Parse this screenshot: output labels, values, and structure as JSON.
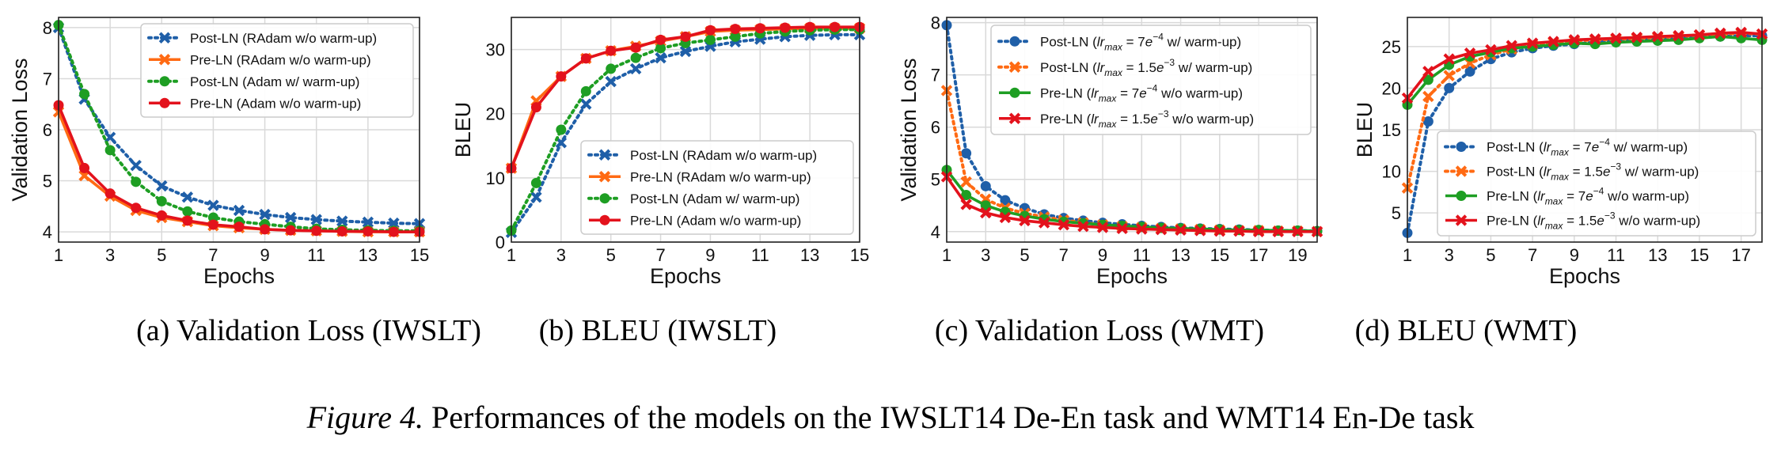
{
  "figure": {
    "label": "Figure 4.",
    "caption": "Performances of the models on the IWSLT14 De-En task and WMT14 En-De task",
    "subcaptions": [
      "(a)  Validation Loss (IWSLT)",
      "(b)  BLEU (IWSLT)",
      "(c)  Validation Loss (WMT)",
      "(d)  BLEU (WMT)"
    ]
  },
  "colors": {
    "blue": "#1f5fa8",
    "orange": "#ff6a13",
    "green": "#1e9e23",
    "red": "#e3121c",
    "grid": "#d9d9d9"
  },
  "chart_data": [
    {
      "type": "line",
      "xlabel": "Epochs",
      "ylabel": "Validation Loss",
      "xlim": [
        1,
        15
      ],
      "ylim": [
        3.8,
        8.2
      ],
      "xticks": [
        1,
        3,
        5,
        7,
        9,
        11,
        13,
        15
      ],
      "yticks": [
        4,
        5,
        6,
        7,
        8
      ],
      "grid": true,
      "legend": "top-right",
      "x": [
        1,
        2,
        3,
        4,
        5,
        6,
        7,
        8,
        9,
        10,
        11,
        12,
        13,
        14,
        15
      ],
      "series": [
        {
          "name": "Post-LN (RAdam w/o warm-up)",
          "color": "blue",
          "style": "dotted",
          "marker": "x",
          "values": [
            8.0,
            6.6,
            5.85,
            5.3,
            4.9,
            4.68,
            4.52,
            4.42,
            4.34,
            4.28,
            4.24,
            4.21,
            4.19,
            4.17,
            4.16
          ]
        },
        {
          "name": "Pre-LN (RAdam w/o warm-up)",
          "color": "orange",
          "style": "solid",
          "marker": "x",
          "values": [
            6.35,
            5.1,
            4.7,
            4.42,
            4.28,
            4.2,
            4.12,
            4.08,
            4.05,
            4.03,
            4.02,
            4.01,
            4.0,
            4.0,
            4.0
          ]
        },
        {
          "name": "Post-LN (Adam w/ warm-up)",
          "color": "green",
          "style": "dotted",
          "marker": "o",
          "values": [
            8.05,
            6.7,
            5.6,
            4.98,
            4.6,
            4.4,
            4.28,
            4.2,
            4.15,
            4.1,
            4.06,
            4.04,
            4.03,
            4.02,
            4.02
          ]
        },
        {
          "name": "Pre-LN (Adam w/o warm-up)",
          "color": "red",
          "style": "solid",
          "marker": "o",
          "values": [
            6.48,
            5.25,
            4.75,
            4.47,
            4.32,
            4.22,
            4.14,
            4.1,
            4.05,
            4.03,
            4.02,
            4.01,
            4.01,
            4.0,
            4.0
          ]
        }
      ]
    },
    {
      "type": "line",
      "xlabel": "Epochs",
      "ylabel": "BLEU",
      "xlim": [
        1,
        15
      ],
      "ylim": [
        0,
        35
      ],
      "xticks": [
        1,
        3,
        5,
        7,
        9,
        11,
        13,
        15
      ],
      "yticks": [
        0,
        10,
        20,
        30
      ],
      "grid": true,
      "legend": "bottom-right",
      "x": [
        1,
        2,
        3,
        4,
        5,
        6,
        7,
        8,
        9,
        10,
        11,
        12,
        13,
        14,
        15
      ],
      "series": [
        {
          "name": "Post-LN (RAdam w/o warm-up)",
          "color": "blue",
          "style": "dotted",
          "marker": "x",
          "values": [
            1.5,
            7.0,
            15.5,
            21.5,
            25.0,
            27.0,
            28.7,
            29.7,
            30.5,
            31.2,
            31.6,
            32.0,
            32.2,
            32.3,
            32.3
          ]
        },
        {
          "name": "Pre-LN (RAdam w/o warm-up)",
          "color": "orange",
          "style": "solid",
          "marker": "x",
          "values": [
            11.5,
            22.0,
            25.8,
            28.6,
            29.8,
            30.5,
            31.3,
            32.0,
            32.8,
            33.0,
            33.1,
            33.2,
            33.3,
            33.3,
            33.3
          ]
        },
        {
          "name": "Post-LN (Adam w/ warm-up)",
          "color": "green",
          "style": "dotted",
          "marker": "o",
          "values": [
            1.8,
            9.2,
            17.5,
            23.5,
            27.0,
            28.7,
            30.2,
            31.0,
            31.5,
            32.0,
            32.5,
            32.8,
            33.0,
            33.1,
            33.1
          ]
        },
        {
          "name": "Pre-LN (Adam w/o warm-up)",
          "color": "red",
          "style": "solid",
          "marker": "o",
          "values": [
            11.5,
            21.0,
            25.8,
            28.6,
            29.8,
            30.3,
            31.5,
            32.0,
            33.0,
            33.2,
            33.3,
            33.4,
            33.5,
            33.5,
            33.5
          ]
        }
      ]
    },
    {
      "type": "line",
      "xlabel": "Epochs",
      "ylabel": "Validation Loss",
      "xlim": [
        1,
        20
      ],
      "ylim": [
        3.8,
        8.1
      ],
      "xticks": [
        1,
        3,
        5,
        7,
        9,
        11,
        13,
        15,
        17,
        19
      ],
      "yticks": [
        4,
        5,
        6,
        7,
        8
      ],
      "grid": true,
      "legend": "top-right",
      "x": [
        1,
        2,
        3,
        4,
        5,
        6,
        7,
        8,
        9,
        10,
        11,
        12,
        13,
        14,
        15,
        16,
        17,
        18,
        19,
        20
      ],
      "series": [
        {
          "name": "Post-LN (lr_max = 7e−4 w/ warm-up)",
          "legend_parts": [
            "Post-LN (",
            "lr",
            "max",
            " = 7",
            "e",
            "−4",
            " w/ warm-up)"
          ],
          "color": "blue",
          "style": "dotted",
          "marker": "o",
          "values": [
            7.95,
            5.5,
            4.87,
            4.6,
            4.45,
            4.33,
            4.26,
            4.21,
            4.17,
            4.14,
            4.11,
            4.09,
            4.07,
            4.06,
            4.05,
            4.04,
            4.03,
            4.02,
            4.02,
            4.01
          ]
        },
        {
          "name": "Post-LN (lr_max = 1.5e−3 w/ warm-up)",
          "legend_parts": [
            "Post-LN (",
            "lr",
            "max",
            " = 1.5",
            "e",
            "−3",
            " w/ warm-up)"
          ],
          "color": "orange",
          "style": "dotted",
          "marker": "x",
          "values": [
            6.7,
            4.95,
            4.62,
            4.45,
            4.35,
            4.28,
            4.22,
            4.17,
            4.13,
            4.1,
            4.08,
            4.06,
            4.05,
            4.04,
            4.03,
            4.02,
            4.02,
            4.01,
            4.01,
            4.0
          ]
        },
        {
          "name": "Pre-LN (lr_max = 7e−4 w/o warm-up)",
          "legend_parts": [
            "Pre-LN (",
            "lr",
            "max",
            " = 7",
            "e",
            "−4",
            " w/o warm-up)"
          ],
          "color": "green",
          "style": "solid",
          "marker": "o",
          "values": [
            5.18,
            4.7,
            4.5,
            4.38,
            4.3,
            4.24,
            4.19,
            4.16,
            4.13,
            4.11,
            4.09,
            4.07,
            4.06,
            4.05,
            4.04,
            4.03,
            4.03,
            4.02,
            4.02,
            4.01
          ]
        },
        {
          "name": "Pre-LN (lr_max = 1.5e−3 w/o warm-up)",
          "legend_parts": [
            "Pre-LN (",
            "lr",
            "max",
            " = 1.5",
            "e",
            "−3",
            " w/o warm-up)"
          ],
          "color": "red",
          "style": "solid",
          "marker": "x",
          "values": [
            5.05,
            4.52,
            4.36,
            4.27,
            4.21,
            4.17,
            4.13,
            4.1,
            4.08,
            4.06,
            4.05,
            4.04,
            4.03,
            4.02,
            4.01,
            4.01,
            4.0,
            4.0,
            4.0,
            4.0
          ]
        }
      ]
    },
    {
      "type": "line",
      "xlabel": "Epochs",
      "ylabel": "BLEU",
      "xlim": [
        1,
        18
      ],
      "ylim": [
        1.5,
        28.5
      ],
      "xticks": [
        1,
        3,
        5,
        7,
        9,
        11,
        13,
        15,
        17
      ],
      "yticks": [
        5,
        10,
        15,
        20,
        25
      ],
      "grid": true,
      "legend": "bottom-right",
      "x": [
        1,
        2,
        3,
        4,
        5,
        6,
        7,
        8,
        9,
        10,
        11,
        12,
        13,
        14,
        15,
        16,
        17,
        18
      ],
      "series": [
        {
          "name": "Post-LN (lr_max = 7e−4 w/ warm-up)",
          "legend_parts": [
            "Post-LN (",
            "lr",
            "max",
            " = 7",
            "e",
            "−4",
            " w/ warm-up)"
          ],
          "color": "blue",
          "style": "dotted",
          "marker": "o",
          "values": [
            2.6,
            16.0,
            20.0,
            22.0,
            23.5,
            24.3,
            24.8,
            25.1,
            25.3,
            25.5,
            25.7,
            25.8,
            25.9,
            26.0,
            26.1,
            26.2,
            26.3,
            26.3
          ]
        },
        {
          "name": "Post-LN (lr_max = 1.5e−3 w/ warm-up)",
          "legend_parts": [
            "Post-LN (",
            "lr",
            "max",
            " = 1.5",
            "e",
            "−3",
            " w/ warm-up)"
          ],
          "color": "orange",
          "style": "dotted",
          "marker": "x",
          "values": [
            8.0,
            19.0,
            21.5,
            23.0,
            24.0,
            24.7,
            25.2,
            25.5,
            25.7,
            25.8,
            25.9,
            26.0,
            26.1,
            26.2,
            26.4,
            26.5,
            26.6,
            26.5
          ]
        },
        {
          "name": "Pre-LN (lr_max = 7e−4 w/o warm-up)",
          "legend_parts": [
            "Pre-LN (",
            "lr",
            "max",
            " = 7",
            "e",
            "−4",
            " w/o warm-up)"
          ],
          "color": "green",
          "style": "solid",
          "marker": "o",
          "values": [
            18.0,
            21.0,
            22.8,
            23.8,
            24.3,
            24.8,
            25.0,
            25.2,
            25.4,
            25.3,
            25.5,
            25.6,
            25.7,
            25.8,
            26.0,
            26.2,
            26.0,
            25.8
          ]
        },
        {
          "name": "Pre-LN (lr_max = 1.5e−3 w/o warm-up)",
          "legend_parts": [
            "Pre-LN (",
            "lr",
            "max",
            " = 1.5",
            "e",
            "−3",
            " w/o warm-up)"
          ],
          "color": "red",
          "style": "solid",
          "marker": "x",
          "values": [
            18.8,
            22.0,
            23.5,
            24.2,
            24.6,
            25.1,
            25.4,
            25.6,
            25.8,
            25.9,
            26.0,
            26.1,
            26.2,
            26.3,
            26.4,
            26.6,
            26.7,
            26.5
          ]
        }
      ]
    }
  ]
}
